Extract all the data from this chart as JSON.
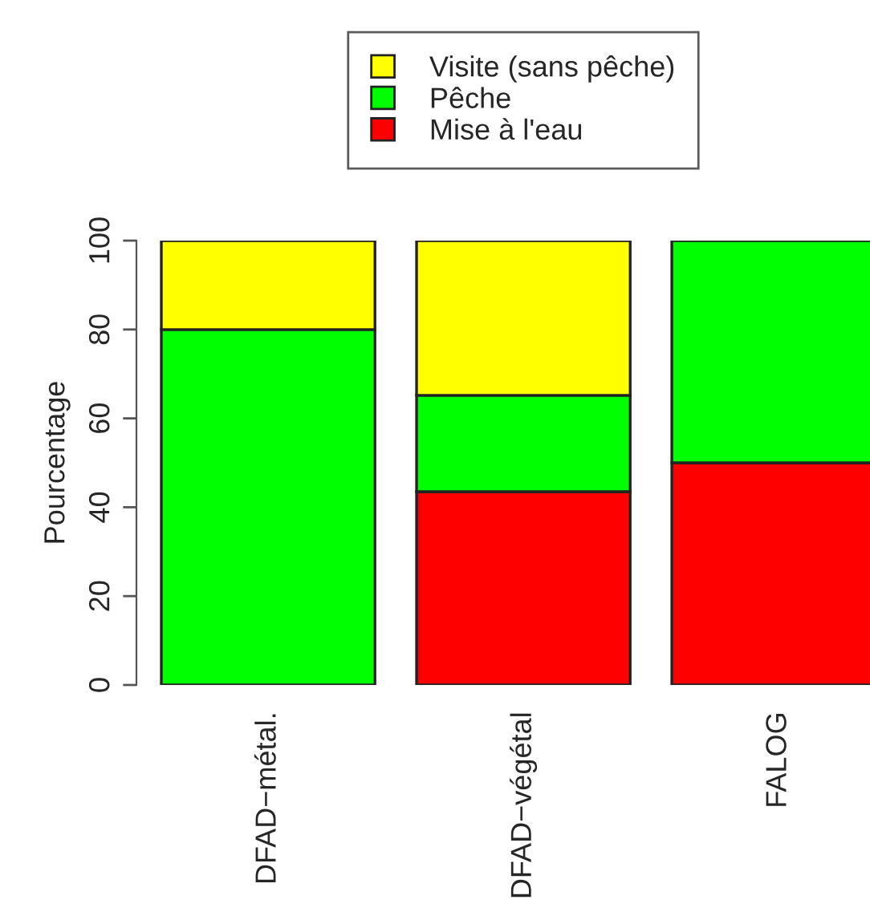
{
  "chart_data": {
    "type": "bar",
    "stacked": true,
    "ylabel": "Pourcentage",
    "categories": [
      "DFAD−métal.",
      "DFAD−végétal",
      "FALOG"
    ],
    "series": [
      {
        "name": "Mise à l'eau",
        "color": "#ff0000",
        "values": [
          0,
          43.5,
          50
        ]
      },
      {
        "name": "Pêche",
        "color": "#00ff00",
        "values": [
          80,
          21.7,
          50
        ]
      },
      {
        "name": "Visite (sans pêche)",
        "color": "#ffff00",
        "values": [
          20,
          34.8,
          0
        ]
      }
    ],
    "ylim": [
      0,
      100
    ],
    "yticks": [
      0,
      20,
      40,
      60,
      80,
      100
    ],
    "legend": "top",
    "grid": false
  }
}
